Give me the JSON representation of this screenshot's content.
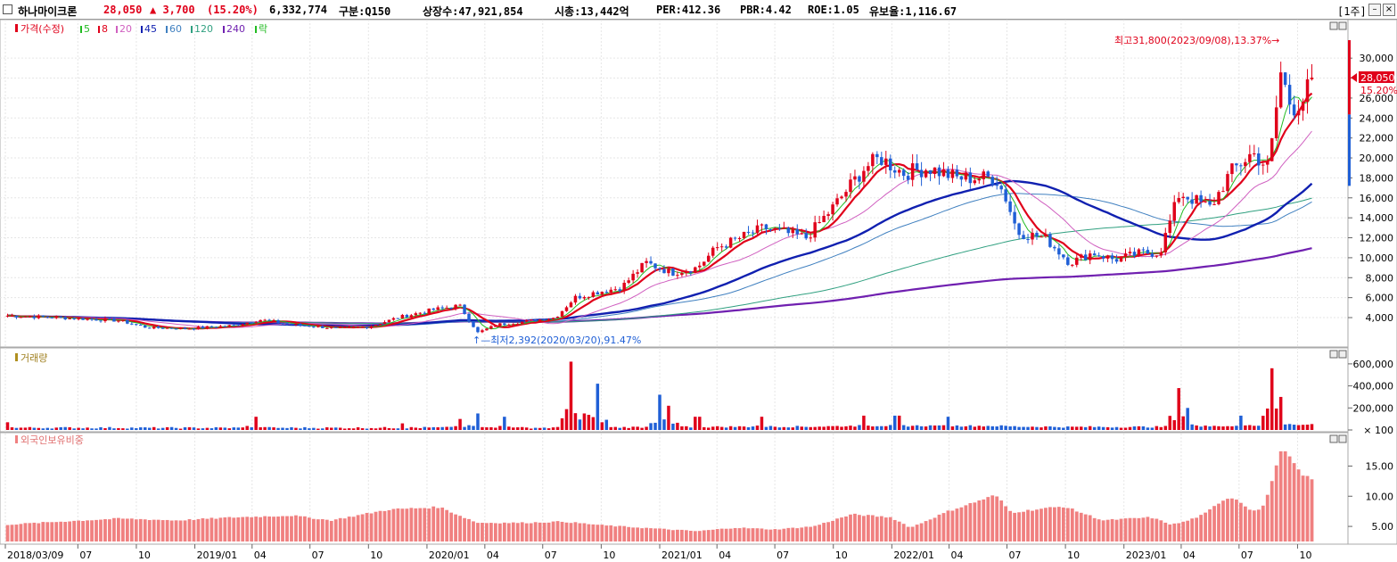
{
  "header": {
    "name": "하나마이크론",
    "price": "28,050",
    "change": "▲ 3,700",
    "change_pct": "(15.20%)",
    "volume": "6,332,774",
    "market": "구분:Q150",
    "listed": "상장수:47,921,854",
    "mcap": "시총:13,442억",
    "per": "PER:412.36",
    "pbr": "PBR:4.42",
    "roe": "ROE:1.05",
    "float": "유보율:1,116.67",
    "period": "[1주]"
  },
  "colors": {
    "up": "#e0001a",
    "down": "#1f5fd6",
    "ma5": "#22bb22",
    "ma8": "#e0001a",
    "ma20": "#d060c0",
    "ma45": "#1020b0",
    "ma60": "#4080c0",
    "ma120": "#30a080",
    "ma240": "#7020b0",
    "foreign": "#f08080"
  },
  "legend": {
    "price": "가격(수정)",
    "items": [
      {
        "label": "5",
        "color": "#22bb22"
      },
      {
        "label": "8",
        "color": "#e0001a"
      },
      {
        "label": "20",
        "color": "#d060c0"
      },
      {
        "label": "45",
        "color": "#1020b0"
      },
      {
        "label": "60",
        "color": "#4080c0"
      },
      {
        "label": "120",
        "color": "#30a080"
      },
      {
        "label": "240",
        "color": "#7020b0"
      },
      {
        "label": "락",
        "color": "#22bb22"
      }
    ],
    "volume": "거래량",
    "foreign": "외국인보유비중"
  },
  "annotations": {
    "high": "최고31,800(2023/09/08),13.37%→",
    "low": "↑—최저2,392(2020/03/20),91.47%"
  },
  "current": {
    "price_label": "28,050",
    "pct_label": "15.20%",
    "value": 28050
  },
  "chart_data": [
    {
      "type": "candlestick",
      "ylim": [
        1500,
        33500
      ],
      "yticks": [
        4000,
        6000,
        8000,
        10000,
        12000,
        14000,
        16000,
        18000,
        20000,
        22000,
        24000,
        26000,
        28000,
        30000
      ],
      "ytick_labels": [
        "4,000",
        "6,000",
        "8,000",
        "10,000",
        "12,000",
        "14,000",
        "16,000",
        "18,000",
        "20,000",
        "22,000",
        "24,000",
        "26,000",
        "28,000",
        "30,000"
      ],
      "x_start": "2018/03/09",
      "x_end": "2023/10/27",
      "close_anchors": [
        [
          "2018/03/09",
          4200
        ],
        [
          "2018/06/01",
          4000
        ],
        [
          "2018/09/01",
          3700
        ],
        [
          "2018/10/15",
          3000
        ],
        [
          "2018/12/15",
          2900
        ],
        [
          "2019/03/01",
          3200
        ],
        [
          "2019/04/10",
          3800
        ],
        [
          "2019/06/01",
          3300
        ],
        [
          "2019/08/15",
          2900
        ],
        [
          "2019/10/01",
          3100
        ],
        [
          "2019/11/15",
          4000
        ],
        [
          "2020/01/10",
          4800
        ],
        [
          "2020/02/20",
          5200
        ],
        [
          "2020/03/20",
          2500
        ],
        [
          "2020/04/20",
          3300
        ],
        [
          "2020/06/01",
          3600
        ],
        [
          "2020/07/20",
          4000
        ],
        [
          "2020/08/20",
          6000
        ],
        [
          "2020/09/20",
          6500
        ],
        [
          "2020/11/01",
          7000
        ],
        [
          "2020/12/10",
          9500
        ],
        [
          "2021/01/20",
          8500
        ],
        [
          "2021/03/01",
          9000
        ],
        [
          "2021/04/01",
          11000
        ],
        [
          "2021/06/15",
          13000
        ],
        [
          "2021/08/20",
          12000
        ],
        [
          "2021/10/01",
          15000
        ],
        [
          "2021/11/20",
          19000
        ],
        [
          "2021/12/15",
          20000
        ],
        [
          "2022/01/20",
          18500
        ],
        [
          "2022/03/01",
          19000
        ],
        [
          "2022/04/15",
          18000
        ],
        [
          "2022/06/15",
          18000
        ],
        [
          "2022/07/01",
          16000
        ],
        [
          "2022/07/20",
          12500
        ],
        [
          "2022/09/01",
          12000
        ],
        [
          "2022/10/10",
          9500
        ],
        [
          "2022/11/15",
          10500
        ],
        [
          "2022/12/20",
          9800
        ],
        [
          "2023/02/01",
          10500
        ],
        [
          "2023/03/01",
          10500
        ],
        [
          "2023/04/01",
          16500
        ],
        [
          "2023/05/20",
          15000
        ],
        [
          "2023/06/20",
          18500
        ],
        [
          "2023/07/25",
          20500
        ],
        [
          "2023/08/20",
          19000
        ],
        [
          "2023/09/08",
          28500
        ],
        [
          "2023/09/25",
          25000
        ],
        [
          "2023/10/15",
          26000
        ],
        [
          "2023/10/27",
          28050
        ]
      ],
      "high": {
        "date": "2023/09/08",
        "value": 31800
      },
      "low": {
        "date": "2020/03/20",
        "value": 2392
      }
    },
    {
      "type": "bar",
      "name": "거래량",
      "ylim": [
        0,
        680000
      ],
      "yticks": [
        100,
        200000,
        400000,
        600000
      ],
      "ytick_labels": [
        "× 100",
        "200,000",
        "400,000",
        "600,000"
      ],
      "spikes": [
        [
          "2018/03/09",
          70000
        ],
        [
          "2019/04/05",
          120000
        ],
        [
          "2019/11/20",
          60000
        ],
        [
          "2020/02/20",
          100000
        ],
        [
          "2020/03/20",
          150000
        ],
        [
          "2020/05/01",
          120000
        ],
        [
          "2020/08/14",
          620000
        ],
        [
          "2020/09/04",
          150000
        ],
        [
          "2020/09/25",
          420000
        ],
        [
          "2020/12/31",
          320000
        ],
        [
          "2021/01/15",
          220000
        ],
        [
          "2021/03/01",
          120000
        ],
        [
          "2021/06/10",
          120000
        ],
        [
          "2021/11/20",
          130000
        ],
        [
          "2022/01/10",
          130000
        ],
        [
          "2022/04/01",
          120000
        ],
        [
          "2023/04/01",
          380000
        ],
        [
          "2023/04/15",
          200000
        ],
        [
          "2023/07/05",
          130000
        ],
        [
          "2023/08/25",
          560000
        ],
        [
          "2023/09/08",
          300000
        ]
      ]
    },
    {
      "type": "bar",
      "name": "외국인보유비중",
      "ylim": [
        2.5,
        19.5
      ],
      "yticks": [
        5,
        10,
        15
      ],
      "ytick_labels": [
        "5.00",
        "10.00",
        "15.00"
      ],
      "anchors": [
        [
          "2018/03/09",
          5.3
        ],
        [
          "2018/06/01",
          5.8
        ],
        [
          "2018/09/01",
          6.3
        ],
        [
          "2018/12/01",
          6.0
        ],
        [
          "2019/03/01",
          6.5
        ],
        [
          "2019/06/01",
          6.8
        ],
        [
          "2019/08/01",
          6.0
        ],
        [
          "2019/11/01",
          7.8
        ],
        [
          "2020/01/20",
          8.2
        ],
        [
          "2020/02/20",
          6.8
        ],
        [
          "2020/03/20",
          5.6
        ],
        [
          "2020/06/01",
          5.6
        ],
        [
          "2020/08/01",
          5.8
        ],
        [
          "2020/10/01",
          5.2
        ],
        [
          "2020/12/01",
          4.8
        ],
        [
          "2021/03/01",
          4.2
        ],
        [
          "2021/05/01",
          4.8
        ],
        [
          "2021/07/01",
          4.5
        ],
        [
          "2021/09/01",
          5.0
        ],
        [
          "2021/10/10",
          6.3
        ],
        [
          "2021/11/01",
          7.0
        ],
        [
          "2022/01/01",
          6.5
        ],
        [
          "2022/02/01",
          4.8
        ],
        [
          "2022/04/01",
          7.5
        ],
        [
          "2022/06/15",
          10.2
        ],
        [
          "2022/07/10",
          7.3
        ],
        [
          "2022/09/01",
          8.0
        ],
        [
          "2022/10/01",
          8.3
        ],
        [
          "2022/12/01",
          6.0
        ],
        [
          "2023/01/15",
          6.3
        ],
        [
          "2023/02/15",
          6.5
        ],
        [
          "2023/03/20",
          5.3
        ],
        [
          "2023/04/10",
          5.8
        ],
        [
          "2023/05/10",
          7.0
        ],
        [
          "2023/06/10",
          9.5
        ],
        [
          "2023/06/25",
          9.8
        ],
        [
          "2023/07/10",
          8.8
        ],
        [
          "2023/07/25",
          7.5
        ],
        [
          "2023/08/10",
          8.0
        ],
        [
          "2023/08/30",
          14.0
        ],
        [
          "2023/09/08",
          17.8
        ],
        [
          "2023/09/22",
          16.5
        ],
        [
          "2023/10/10",
          13.5
        ],
        [
          "2023/10/27",
          13.0
        ]
      ]
    }
  ],
  "x_axis": [
    {
      "label": "2018/03/09",
      "date": "2018/03/09"
    },
    {
      "label": "07",
      "date": "2018/07/01"
    },
    {
      "label": "10",
      "date": "2018/10/01"
    },
    {
      "label": "2019/01",
      "date": "2019/01/01"
    },
    {
      "label": "04",
      "date": "2019/04/01"
    },
    {
      "label": "07",
      "date": "2019/07/01"
    },
    {
      "label": "10",
      "date": "2019/10/01"
    },
    {
      "label": "2020/01",
      "date": "2020/01/01"
    },
    {
      "label": "04",
      "date": "2020/04/01"
    },
    {
      "label": "07",
      "date": "2020/07/01"
    },
    {
      "label": "10",
      "date": "2020/10/01"
    },
    {
      "label": "2021/01",
      "date": "2021/01/01"
    },
    {
      "label": "04",
      "date": "2021/04/01"
    },
    {
      "label": "07",
      "date": "2021/07/01"
    },
    {
      "label": "10",
      "date": "2021/10/01"
    },
    {
      "label": "2022/01",
      "date": "2022/01/01"
    },
    {
      "label": "04",
      "date": "2022/04/01"
    },
    {
      "label": "07",
      "date": "2022/07/01"
    },
    {
      "label": "10",
      "date": "2022/10/01"
    },
    {
      "label": "2023/01",
      "date": "2023/01/01"
    },
    {
      "label": "04",
      "date": "2023/04/01"
    },
    {
      "label": "07",
      "date": "2023/07/01"
    },
    {
      "label": "10",
      "date": "2023/10/01"
    }
  ]
}
